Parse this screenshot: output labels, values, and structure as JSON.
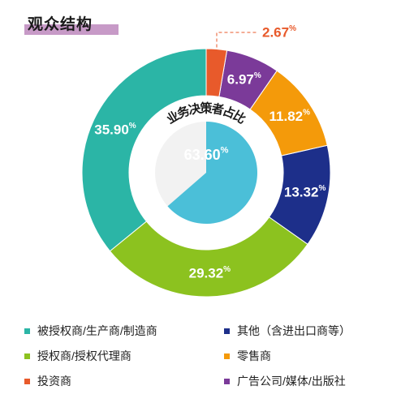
{
  "header": {
    "title": "观众结构"
  },
  "chart_data": [
    {
      "type": "pie",
      "style": "donut",
      "categories": [
        "被授权商/生产商/制造商",
        "授权商/授权代理商",
        "其他（含进出口商等）",
        "零售商",
        "广告公司/媒体/出版社",
        "投资商"
      ],
      "values": [
        35.9,
        29.32,
        13.32,
        11.82,
        6.97,
        2.67
      ],
      "labels": [
        "35.90",
        "29.32",
        "13.32",
        "11.82",
        "6.97",
        "2.67"
      ],
      "unit": "%",
      "colors": [
        "#2bb5a6",
        "#8cc21f",
        "#1d2f8a",
        "#f49a0a",
        "#7b3a99",
        "#e85a2b"
      ]
    },
    {
      "type": "pie",
      "title": "业务决策者占比",
      "categories": [
        "业务决策者"
      ],
      "values": [
        63.6
      ],
      "labels": [
        "63.60"
      ],
      "unit": "%",
      "colors": [
        "#4bbfd8",
        "#f2f2f2"
      ]
    }
  ],
  "legend": [
    {
      "label": "被授权商/生产商/制造商",
      "color": "#2bb5a6"
    },
    {
      "label": "其他（含进出口商等）",
      "color": "#1d2f8a"
    },
    {
      "label": "授权商/授权代理商",
      "color": "#8cc21f"
    },
    {
      "label": "零售商",
      "color": "#f49a0a"
    },
    {
      "label": "投资商",
      "color": "#e85a2b"
    },
    {
      "label": "广告公司/媒体/出版社",
      "color": "#7b3a99"
    }
  ]
}
